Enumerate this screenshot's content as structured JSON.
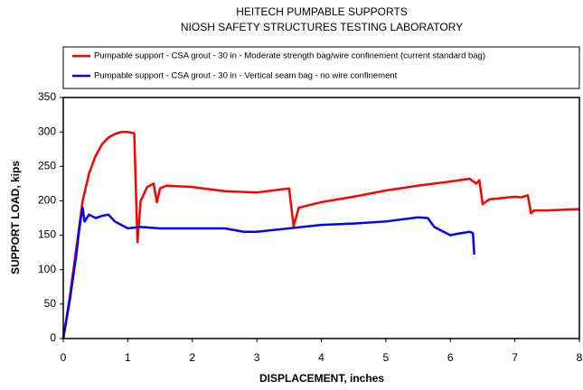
{
  "chart_data": {
    "type": "line",
    "title": "HEITECH PUMPABLE SUPPORTS",
    "subtitle": "NIOSH SAFETY STRUCTURES TESTING LABORATORY",
    "x_label": "DISPLACEMENT, inches",
    "y_label": "SUPPORT LOAD, kips",
    "xlim": [
      0,
      8
    ],
    "xticks": [
      0,
      1,
      2,
      3,
      4,
      5,
      6,
      7,
      8
    ],
    "ylim": [
      0,
      350
    ],
    "yticks": [
      0,
      50,
      100,
      150,
      200,
      250,
      300,
      350
    ],
    "grid": false,
    "series": [
      {
        "name": "Pumpable support - CSA grout - 30 in - Moderate strength bag/wire confinement (current standard bag)",
        "color": "#ff0000",
        "x": [
          0,
          0.1,
          0.2,
          0.3,
          0.4,
          0.5,
          0.6,
          0.7,
          0.8,
          0.9,
          1.0,
          1.1,
          1.15,
          1.2,
          1.3,
          1.4,
          1.45,
          1.5,
          1.6,
          2.0,
          2.5,
          3.0,
          3.5,
          3.57,
          3.65,
          4.0,
          4.5,
          5.0,
          5.5,
          6.0,
          6.3,
          6.4,
          6.45,
          6.5,
          6.6,
          7.0,
          7.1,
          7.2,
          7.25,
          7.3,
          7.5,
          8.0
        ],
        "values": [
          0,
          60,
          130,
          200,
          240,
          265,
          282,
          292,
          297,
          300,
          300,
          298,
          140,
          200,
          220,
          225,
          198,
          218,
          222,
          220,
          214,
          212,
          218,
          163,
          190,
          198,
          206,
          215,
          222,
          228,
          232,
          225,
          230,
          195,
          202,
          206,
          205,
          208,
          182,
          186,
          186,
          188
        ]
      },
      {
        "name": "Pumpable support - CSA grout - 30 in - Vertical seam bag - no wire confinement",
        "color": "#0000ff",
        "x": [
          0,
          0.1,
          0.2,
          0.25,
          0.3,
          0.33,
          0.4,
          0.5,
          0.6,
          0.7,
          0.8,
          0.9,
          1.0,
          1.2,
          1.5,
          2.0,
          2.5,
          2.8,
          3.0,
          3.5,
          4.0,
          4.5,
          5.0,
          5.5,
          5.65,
          5.75,
          6.0,
          6.1,
          6.3,
          6.35,
          6.37
        ],
        "values": [
          0,
          55,
          120,
          160,
          190,
          170,
          180,
          175,
          178,
          180,
          170,
          165,
          160,
          162,
          160,
          160,
          160,
          155,
          155,
          160,
          165,
          167,
          170,
          176,
          175,
          162,
          150,
          152,
          155,
          153,
          122
        ]
      }
    ]
  }
}
